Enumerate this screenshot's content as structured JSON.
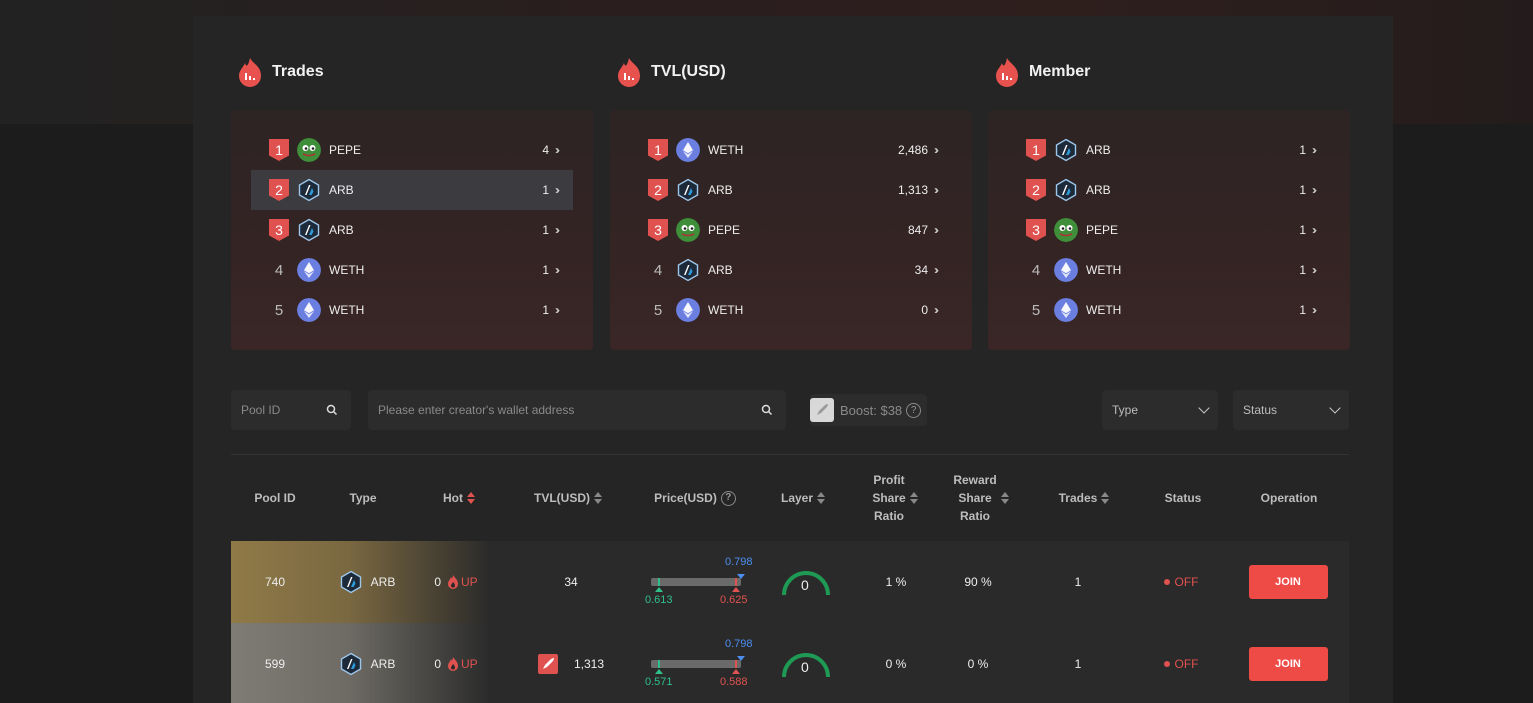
{
  "rankings": [
    {
      "title": "Trades",
      "items": [
        {
          "rank": "1",
          "coin": "pepe",
          "name": "PEPE",
          "value": "4"
        },
        {
          "rank": "2",
          "coin": "arb",
          "name": "ARB",
          "value": "1"
        },
        {
          "rank": "3",
          "coin": "arb",
          "name": "ARB",
          "value": "1"
        },
        {
          "rank": "4",
          "coin": "weth",
          "name": "WETH",
          "value": "1"
        },
        {
          "rank": "5",
          "coin": "weth",
          "name": "WETH",
          "value": "1"
        }
      ]
    },
    {
      "title": "TVL(USD)",
      "items": [
        {
          "rank": "1",
          "coin": "weth",
          "name": "WETH",
          "value": "2,486"
        },
        {
          "rank": "2",
          "coin": "arb",
          "name": "ARB",
          "value": "1,313"
        },
        {
          "rank": "3",
          "coin": "pepe",
          "name": "PEPE",
          "value": "847"
        },
        {
          "rank": "4",
          "coin": "arb",
          "name": "ARB",
          "value": "34"
        },
        {
          "rank": "5",
          "coin": "weth",
          "name": "WETH",
          "value": "0"
        }
      ]
    },
    {
      "title": "Member",
      "items": [
        {
          "rank": "1",
          "coin": "arb",
          "name": "ARB",
          "value": "1"
        },
        {
          "rank": "2",
          "coin": "arb",
          "name": "ARB",
          "value": "1"
        },
        {
          "rank": "3",
          "coin": "pepe",
          "name": "PEPE",
          "value": "1"
        },
        {
          "rank": "4",
          "coin": "weth",
          "name": "WETH",
          "value": "1"
        },
        {
          "rank": "5",
          "coin": "weth",
          "name": "WETH",
          "value": "1"
        }
      ]
    }
  ],
  "filters": {
    "pool_id_placeholder": "Pool ID",
    "wallet_placeholder": "Please enter creator's wallet address",
    "boost_label": "Boost: $38",
    "type_label": "Type",
    "status_label": "Status"
  },
  "table": {
    "headers": {
      "pool_id": "Pool ID",
      "type": "Type",
      "hot": "Hot",
      "tvl": "TVL(USD)",
      "price": "Price(USD)",
      "layer": "Layer",
      "profit_1": "Profit",
      "profit_2": "Share",
      "profit_3": "Ratio",
      "reward_1": "Reward",
      "reward_2": "Share",
      "reward_3": "Ratio",
      "trades": "Trades",
      "status": "Status",
      "operation": "Operation"
    },
    "rows": [
      {
        "pool_id": "740",
        "type": "ARB",
        "hot": "0",
        "hot_label": "UP",
        "tvl": "34",
        "boosted": false,
        "price_top": "0.798",
        "price_low": "0.613",
        "price_current": "0.625",
        "layer": "0",
        "profit_share": "1 %",
        "reward_share": "90 %",
        "trades": "1",
        "status": "OFF",
        "action": "JOIN"
      },
      {
        "pool_id": "599",
        "type": "ARB",
        "hot": "0",
        "hot_label": "UP",
        "tvl": "1,313",
        "boosted": true,
        "price_top": "0.798",
        "price_low": "0.571",
        "price_current": "0.588",
        "layer": "0",
        "profit_share": "0 %",
        "reward_share": "0 %",
        "trades": "1",
        "status": "OFF",
        "action": "JOIN"
      }
    ]
  },
  "colors": {
    "accent": "#ee4b47",
    "green": "#2fc08a",
    "blue": "#4d8ef0"
  }
}
